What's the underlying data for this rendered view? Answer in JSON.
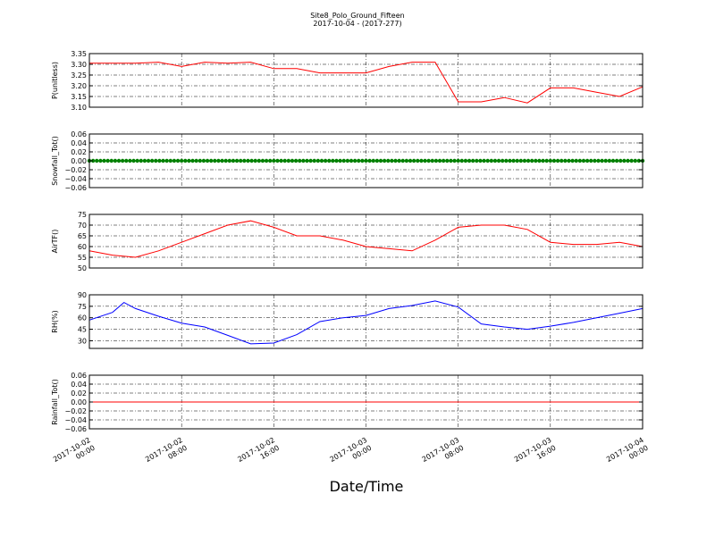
{
  "title": "Site8_Polo_Ground_Fifteen",
  "subtitle": "2017-10-04 - (2017-277)",
  "xlabel": "Date/Time",
  "x_tick_labels": [
    [
      "2017-10-02",
      "00:00"
    ],
    [
      "2017-10-02",
      "08:00"
    ],
    [
      "2017-10-02",
      "16:00"
    ],
    [
      "2017-10-03",
      "00:00"
    ],
    [
      "2017-10-03",
      "08:00"
    ],
    [
      "2017-10-03",
      "16:00"
    ],
    [
      "2017-10-04",
      "00:00"
    ]
  ],
  "colors": {
    "red": "#ff0000",
    "green": "#008000",
    "blue": "#0000ff"
  },
  "chart_data": [
    {
      "type": "line",
      "ylabel": "P(unitless)",
      "ylim": [
        3.1,
        3.35
      ],
      "yticks": [
        "3.10",
        "3.15",
        "3.20",
        "3.25",
        "3.30",
        "3.35"
      ],
      "color": "#ff0000",
      "grid": true,
      "x": [
        "10-02 00:00",
        "10-02 04:00",
        "10-02 06:00",
        "10-02 08:00",
        "10-02 10:00",
        "10-02 12:00",
        "10-02 14:00",
        "10-02 16:00",
        "10-02 18:00",
        "10-02 20:00",
        "10-02 22:00",
        "10-03 00:00",
        "10-03 02:00",
        "10-03 04:00",
        "10-03 06:00",
        "10-03 08:00",
        "10-03 10:00",
        "10-03 12:00",
        "10-03 14:00",
        "10-03 16:00",
        "10-03 18:00",
        "10-03 20:00",
        "10-03 22:00",
        "10-04 00:00"
      ],
      "values": [
        3.305,
        3.305,
        3.31,
        3.29,
        3.31,
        3.305,
        3.31,
        3.28,
        3.28,
        3.26,
        3.26,
        3.26,
        3.29,
        3.31,
        3.31,
        3.125,
        3.125,
        3.145,
        3.12,
        3.19,
        3.19,
        3.17,
        3.15,
        3.195
      ]
    },
    {
      "type": "scatter",
      "ylabel": "Snowfall_Tot()",
      "ylim": [
        -0.06,
        0.06
      ],
      "yticks": [
        "−0.06",
        "−0.04",
        "−0.02",
        "0.00",
        "0.02",
        "0.04",
        "0.06"
      ],
      "color": "#008000",
      "grid": true,
      "x_range": [
        "10-02 00:00",
        "10-04 00:00"
      ],
      "constant_value": 0.0
    },
    {
      "type": "line",
      "ylabel": "AirTF()",
      "ylim": [
        50,
        75
      ],
      "yticks": [
        "50",
        "55",
        "60",
        "65",
        "70",
        "75"
      ],
      "color": "#ff0000",
      "grid": true,
      "x": [
        "10-02 00:00",
        "10-02 02:00",
        "10-02 04:00",
        "10-02 06:00",
        "10-02 08:00",
        "10-02 10:00",
        "10-02 12:00",
        "10-02 14:00",
        "10-02 16:00",
        "10-02 18:00",
        "10-02 20:00",
        "10-02 22:00",
        "10-03 00:00",
        "10-03 02:00",
        "10-03 04:00",
        "10-03 06:00",
        "10-03 08:00",
        "10-03 10:00",
        "10-03 12:00",
        "10-03 14:00",
        "10-03 16:00",
        "10-03 18:00",
        "10-03 20:00",
        "10-03 22:00",
        "10-04 00:00"
      ],
      "values": [
        58,
        56,
        55,
        58,
        62,
        66,
        70,
        72,
        69,
        65,
        65,
        63,
        60,
        59,
        58,
        63,
        69,
        70,
        70,
        68,
        62,
        61,
        61,
        62,
        60
      ]
    },
    {
      "type": "line",
      "ylabel": "RH(%)",
      "ylim": [
        20,
        90
      ],
      "yticks": [
        "30",
        "45",
        "60",
        "75",
        "90"
      ],
      "color": "#0000ff",
      "grid": true,
      "x": [
        "10-02 00:00",
        "10-02 02:00",
        "10-02 03:00",
        "10-02 04:00",
        "10-02 06:00",
        "10-02 08:00",
        "10-02 10:00",
        "10-02 12:00",
        "10-02 14:00",
        "10-02 16:00",
        "10-02 18:00",
        "10-02 20:00",
        "10-02 22:00",
        "10-03 00:00",
        "10-03 02:00",
        "10-03 04:00",
        "10-03 06:00",
        "10-03 08:00",
        "10-03 10:00",
        "10-03 12:00",
        "10-03 14:00",
        "10-03 16:00",
        "10-03 18:00",
        "10-03 20:00",
        "10-03 22:00",
        "10-04 00:00"
      ],
      "values": [
        57,
        67,
        80,
        72,
        62,
        53,
        48,
        37,
        26,
        27,
        38,
        55,
        60,
        63,
        72,
        76,
        82,
        74,
        52,
        48,
        45,
        49,
        54,
        60,
        66,
        72
      ]
    },
    {
      "type": "line",
      "ylabel": "Rainfall_Tot()",
      "ylim": [
        -0.06,
        0.06
      ],
      "yticks": [
        "−0.06",
        "−0.04",
        "−0.02",
        "0.00",
        "0.02",
        "0.04",
        "0.06"
      ],
      "color": "#ff0000",
      "grid": true,
      "x_range": [
        "10-02 00:00",
        "10-04 00:00"
      ],
      "constant_value": 0.0
    }
  ]
}
